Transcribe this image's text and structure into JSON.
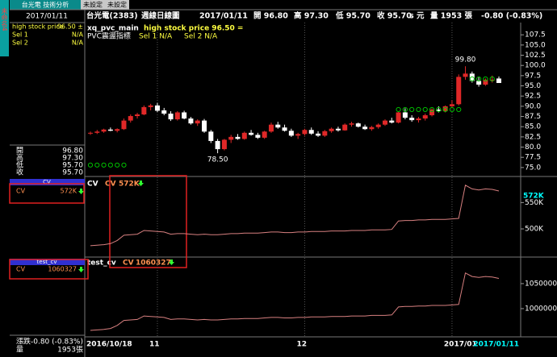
{
  "tabs": [
    "台光電 技術分析",
    "未設定",
    "未設定"
  ],
  "side_tab": "未命名4",
  "sidebar": {
    "date": "2017/01/11",
    "indicator": [
      [
        "high stock price",
        "96.50 ±"
      ],
      [
        "Sel 1",
        "N/A"
      ],
      [
        "Sel 2",
        "N/A"
      ]
    ],
    "quote": [
      [
        "開",
        "96.80"
      ],
      [
        "高",
        "97.30"
      ],
      [
        "低",
        "95.70"
      ],
      [
        "收",
        "95.70"
      ]
    ],
    "cv_title": "CV",
    "cv_label": "CV",
    "test_title": "test_cv",
    "test_label": "CV",
    "change": [
      "漲跌",
      "-0.80 (-0.83%)"
    ],
    "volume": [
      "量",
      "1953張"
    ]
  },
  "header": [
    "台光電(2383)",
    "週線日線圖",
    "2017/01/11",
    "開 96.80",
    "高 97.30",
    "低 95.70",
    "收 95.70",
    "s 元",
    "量 1953 張",
    "-0.80 (-0.83%)"
  ],
  "chart_data": [
    {
      "type": "candlestick",
      "title": "xq_pvc_main",
      "subtitle": "high stock price 96.50 =",
      "legend_texts": [
        "PVC震盪指標",
        "Sel 1 N/A",
        "Sel 2 N/A"
      ],
      "up_color": "#e02828",
      "down_color": "#ffffff",
      "open": [
        83.4,
        83.5,
        83.8,
        84.3,
        84.0,
        84.4,
        86.5,
        87.6,
        88.0,
        89.8,
        90.2,
        89.0,
        88.2,
        86.8,
        88.5,
        87.0,
        85.8,
        86.5,
        83.8,
        81.5,
        79.5,
        81.8,
        82.5,
        82.0,
        83.5,
        83.0,
        82.3,
        83.8,
        85.5,
        84.8,
        84.0,
        82.8,
        83.2,
        84.2,
        83.3,
        82.8,
        83.9,
        84.5,
        84.1,
        85.5,
        85.8,
        85.0,
        84.4,
        84.9,
        85.5,
        86.5,
        86.0,
        88.5,
        87.2,
        86.6,
        87.0,
        87.8,
        89.2,
        88.8,
        90.0,
        90.5,
        97.2,
        98.0,
        96.2,
        95.3,
        96.5,
        96.8
      ],
      "high": [
        83.8,
        84.2,
        84.5,
        84.8,
        84.6,
        87.0,
        88.0,
        88.4,
        90.2,
        90.6,
        90.8,
        89.6,
        88.8,
        88.8,
        88.9,
        87.4,
        86.8,
        86.9,
        84.2,
        82.0,
        82.0,
        83.0,
        83.2,
        83.8,
        84.2,
        83.5,
        84.0,
        86.0,
        86.2,
        85.5,
        84.5,
        83.5,
        84.5,
        84.8,
        83.9,
        84.2,
        84.8,
        85.0,
        85.8,
        86.2,
        86.0,
        85.5,
        85.2,
        85.8,
        86.8,
        87.2,
        88.8,
        89.5,
        87.8,
        87.4,
        88.2,
        89.5,
        90.0,
        90.2,
        91.5,
        97.8,
        99.8,
        98.5,
        97.2,
        96.8,
        97.5,
        97.3
      ],
      "low": [
        83.0,
        83.2,
        83.5,
        83.9,
        83.6,
        84.2,
        86.0,
        87.0,
        87.8,
        89.0,
        88.6,
        87.8,
        86.4,
        86.5,
        86.8,
        85.5,
        85.2,
        83.5,
        81.0,
        78.5,
        79.2,
        81.0,
        81.8,
        81.8,
        82.8,
        82.0,
        82.0,
        83.5,
        84.5,
        83.8,
        82.5,
        82.0,
        82.8,
        83.0,
        82.5,
        82.5,
        83.5,
        83.8,
        84.0,
        85.0,
        84.8,
        84.2,
        84.0,
        84.5,
        85.2,
        85.8,
        85.8,
        86.8,
        86.2,
        86.0,
        86.5,
        87.5,
        88.5,
        88.5,
        89.5,
        90.2,
        96.5,
        95.8,
        94.8,
        95.0,
        95.8,
        95.7
      ],
      "close": [
        83.5,
        83.8,
        84.3,
        84.0,
        84.4,
        86.5,
        87.6,
        88.0,
        89.8,
        90.2,
        88.9,
        88.2,
        86.8,
        88.5,
        87.0,
        85.8,
        86.5,
        83.8,
        81.5,
        79.5,
        81.8,
        82.5,
        82.0,
        83.5,
        83.0,
        82.3,
        83.8,
        85.5,
        84.8,
        84.0,
        82.8,
        83.2,
        84.2,
        83.3,
        82.8,
        83.9,
        84.5,
        84.1,
        85.5,
        85.8,
        85.0,
        84.4,
        84.9,
        85.5,
        86.5,
        86.0,
        88.5,
        87.2,
        86.6,
        87.0,
        87.8,
        89.2,
        88.8,
        90.0,
        90.5,
        97.2,
        98.0,
        96.2,
        95.3,
        96.5,
        96.5,
        95.7
      ],
      "markers": {
        "color": "#00c000",
        "values": [
          75.6,
          75.6,
          75.6,
          75.6,
          75.6,
          75.6,
          null,
          null,
          null,
          null,
          null,
          null,
          null,
          null,
          null,
          null,
          null,
          null,
          null,
          null,
          null,
          null,
          null,
          null,
          null,
          null,
          null,
          null,
          null,
          null,
          null,
          null,
          null,
          null,
          null,
          null,
          null,
          null,
          null,
          null,
          null,
          null,
          null,
          null,
          null,
          null,
          89.2,
          89.2,
          89.2,
          89.2,
          89.2,
          89.2,
          89.2,
          89.2,
          89.2,
          89.2,
          null,
          96.7,
          96.7,
          96.7,
          96.7,
          null
        ]
      },
      "annotations": [
        {
          "x": 56,
          "value": 99.8,
          "label": "99.80"
        },
        {
          "x": 19,
          "value": 78.5,
          "label": "78.50"
        }
      ],
      "ylim": [
        73,
        110.5
      ],
      "yticks": [
        107.5,
        {
          "value": 105,
          "label": "105.0"
        },
        102.5,
        {
          "value": 100,
          "label": "100.0"
        },
        97.5,
        {
          "value": 95,
          "label": "95.0"
        },
        92.5,
        {
          "value": 90,
          "label": "90.0"
        },
        87.5,
        {
          "value": 85,
          "label": "85.0"
        },
        82.5,
        {
          "value": 80,
          "label": "80.0"
        },
        77.5,
        {
          "value": 75,
          "label": "75.0"
        }
      ]
    },
    {
      "type": "line",
      "title": "CV",
      "color": "#d88080",
      "values": [
        468000,
        469000,
        470000,
        472000,
        478000,
        488000,
        489000,
        490000,
        497000,
        496000,
        495000,
        494000,
        490000,
        491000,
        491000,
        490000,
        489000,
        490000,
        489000,
        489000,
        490000,
        491000,
        491000,
        492000,
        492000,
        492000,
        493000,
        494000,
        494000,
        493000,
        493000,
        494000,
        494000,
        495000,
        495000,
        495000,
        496000,
        496000,
        496000,
        497000,
        497000,
        497000,
        498000,
        498000,
        498000,
        499000,
        515000,
        516000,
        516000,
        517000,
        517000,
        518000,
        518000,
        518000,
        519000,
        520000,
        583000,
        576000,
        574000,
        576000,
        575000,
        572000
      ],
      "value_labels": [
        null,
        null,
        null,
        null,
        null,
        null,
        null,
        null,
        null,
        null,
        null,
        null,
        null,
        null,
        null,
        null,
        null,
        null,
        null,
        null,
        null,
        null,
        null,
        null,
        null,
        null,
        null,
        null,
        null,
        null,
        null,
        null,
        null,
        null,
        null,
        null,
        null,
        null,
        null,
        null,
        null,
        null,
        null,
        null,
        null,
        null,
        null,
        null,
        null,
        null,
        null,
        null,
        null,
        null,
        null,
        null,
        null,
        null,
        null,
        null,
        null,
        "572K"
      ],
      "ylim": [
        448000,
        598000
      ],
      "yticks": [
        {
          "value": 500000,
          "label": "500K"
        },
        {
          "value": 550000,
          "label": "550K"
        }
      ]
    },
    {
      "type": "line",
      "title": "test_cv",
      "color": "#d88080",
      "categories": [
        "2016/10/18",
        null,
        null,
        null,
        null,
        null,
        null,
        null,
        null,
        null,
        "11",
        null,
        null,
        null,
        null,
        null,
        null,
        null,
        null,
        null,
        null,
        null,
        null,
        null,
        null,
        null,
        null,
        null,
        null,
        null,
        null,
        null,
        "12",
        null,
        null,
        null,
        null,
        null,
        null,
        null,
        null,
        null,
        null,
        null,
        null,
        null,
        null,
        null,
        null,
        null,
        null,
        null,
        null,
        null,
        "2017/01",
        null,
        null,
        null,
        null,
        null,
        null,
        "2017/01/11"
      ],
      "values": [
        956327,
        957327,
        958327,
        960327,
        966327,
        976327,
        977327,
        978327,
        985327,
        984327,
        983327,
        982327,
        978327,
        979327,
        979327,
        978327,
        977327,
        978327,
        977327,
        977327,
        978327,
        979327,
        979327,
        980327,
        980327,
        980327,
        981327,
        982327,
        982327,
        981327,
        981327,
        982327,
        982327,
        983327,
        983327,
        983327,
        984327,
        984327,
        984327,
        985327,
        985327,
        985327,
        986327,
        986327,
        986327,
        987327,
        1003327,
        1004327,
        1004327,
        1005327,
        1005327,
        1006327,
        1006327,
        1006327,
        1007327,
        1008327,
        1071327,
        1064327,
        1062327,
        1064327,
        1063327,
        1060327
      ],
      "ylim": [
        943500,
        1101500
      ],
      "yticks": [
        1000000,
        1050000
      ]
    }
  ]
}
